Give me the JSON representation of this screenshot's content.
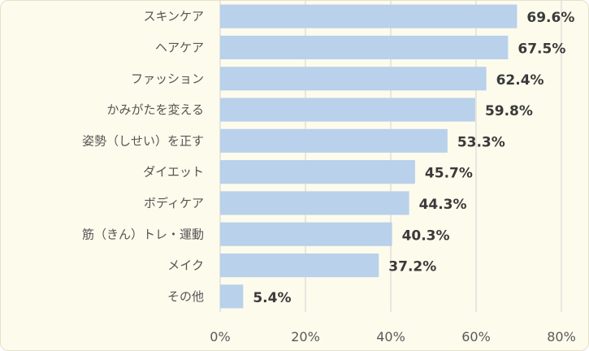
{
  "chart_data": {
    "type": "bar",
    "orientation": "horizontal",
    "categories": [
      "スキンケア",
      "ヘアケア",
      "ファッション",
      "かみがたを変える",
      "姿勢（しせい）を正す",
      "ダイエット",
      "ボディケア",
      "筋（きん）トレ・運動",
      "メイク",
      "その他"
    ],
    "values": [
      69.6,
      67.5,
      62.4,
      59.8,
      53.3,
      45.7,
      44.3,
      40.3,
      37.2,
      5.4
    ],
    "value_labels": [
      "69.6%",
      "67.5%",
      "62.4%",
      "59.8%",
      "53.3%",
      "45.7%",
      "44.3%",
      "40.3%",
      "37.2%",
      "5.4%"
    ],
    "xlim": [
      0,
      80
    ],
    "xticks": [
      0,
      20,
      40,
      60,
      80
    ],
    "xtick_labels": [
      "0%",
      "20%",
      "40%",
      "60%",
      "80%"
    ],
    "title": "",
    "xlabel": "",
    "ylabel": "",
    "grid": true,
    "legend": "none",
    "colors": {
      "bar": "#b9d1ea",
      "grid": "#d9d9d9",
      "background": "#fdfbec"
    }
  }
}
